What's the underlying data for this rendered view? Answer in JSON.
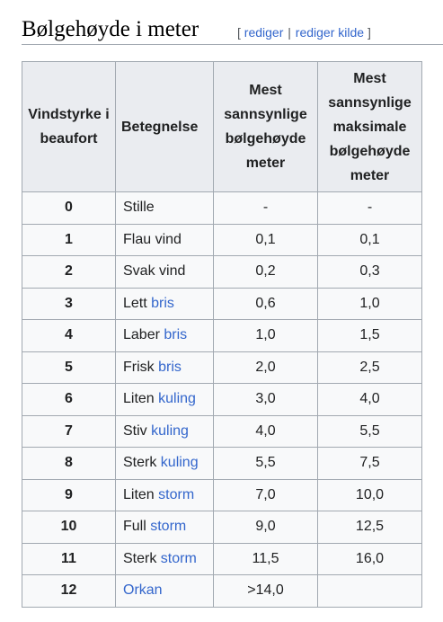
{
  "heading": {
    "title": "Bølgehøyde i meter",
    "bracket_open": "[",
    "edit_label": "rediger",
    "separator": "|",
    "edit_source_label": "rediger kilde",
    "bracket_close": "]"
  },
  "table": {
    "headers": {
      "force": "Vindstyrke i beaufort",
      "name": "Betegnelse",
      "mean": "Mest sannsynlige bølgehøyde meter",
      "max": "Mest sannsynlige maksimale bølgehøyde meter"
    },
    "rows": [
      {
        "force": "0",
        "prefix": "Stille",
        "link": "",
        "mean": "-",
        "max": "-"
      },
      {
        "force": "1",
        "prefix": "Flau vind",
        "link": "",
        "mean": "0,1",
        "max": "0,1"
      },
      {
        "force": "2",
        "prefix": "Svak vind",
        "link": "",
        "mean": "0,2",
        "max": "0,3"
      },
      {
        "force": "3",
        "prefix": "Lett ",
        "link": "bris",
        "mean": "0,6",
        "max": "1,0"
      },
      {
        "force": "4",
        "prefix": "Laber ",
        "link": "bris",
        "mean": "1,0",
        "max": "1,5"
      },
      {
        "force": "5",
        "prefix": "Frisk ",
        "link": "bris",
        "mean": "2,0",
        "max": "2,5"
      },
      {
        "force": "6",
        "prefix": "Liten ",
        "link": "kuling",
        "mean": "3,0",
        "max": "4,0"
      },
      {
        "force": "7",
        "prefix": "Stiv ",
        "link": "kuling",
        "mean": "4,0",
        "max": "5,5"
      },
      {
        "force": "8",
        "prefix": "Sterk ",
        "link": "kuling",
        "mean": "5,5",
        "max": "7,5"
      },
      {
        "force": "9",
        "prefix": "Liten ",
        "link": "storm",
        "mean": "7,0",
        "max": "10,0"
      },
      {
        "force": "10",
        "prefix": "Full ",
        "link": "storm",
        "mean": "9,0",
        "max": "12,5"
      },
      {
        "force": "11",
        "prefix": "Sterk ",
        "link": "storm",
        "mean": "11,5",
        "max": "16,0"
      },
      {
        "force": "12",
        "prefix": "",
        "link": "Orkan",
        "mean": ">14,0",
        "max": ""
      }
    ]
  },
  "colors": {
    "link": "#3366cc",
    "header_bg": "#eaecf0",
    "cell_bg": "#f8f9fa",
    "border": "#a2a9b1",
    "text": "#202122"
  }
}
